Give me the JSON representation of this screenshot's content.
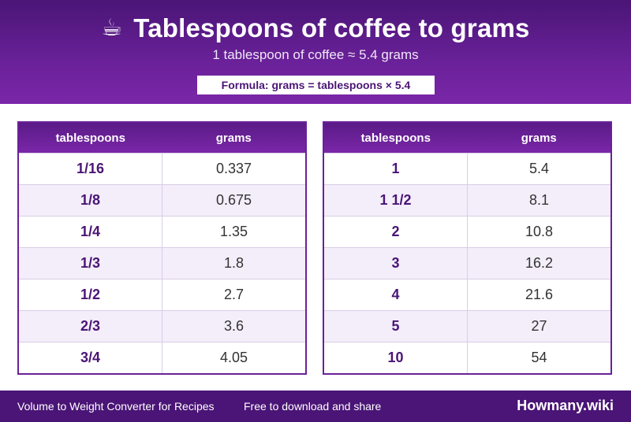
{
  "header": {
    "icon": "☕",
    "title": "Tablespoons of coffee to grams",
    "subtitle": "1 tablespoon of coffee ≈ 5.4 grams",
    "formula": "Formula: grams = tablespoons × 5.4"
  },
  "tables": [
    {
      "headers": [
        "tablespoons",
        "grams"
      ],
      "rows": [
        [
          "1/16",
          "0.337"
        ],
        [
          "1/8",
          "0.675"
        ],
        [
          "1/4",
          "1.35"
        ],
        [
          "1/3",
          "1.8"
        ],
        [
          "1/2",
          "2.7"
        ],
        [
          "2/3",
          "3.6"
        ],
        [
          "3/4",
          "4.05"
        ]
      ]
    },
    {
      "headers": [
        "tablespoons",
        "grams"
      ],
      "rows": [
        [
          "1",
          "5.4"
        ],
        [
          "1 1/2",
          "8.1"
        ],
        [
          "2",
          "10.8"
        ],
        [
          "3",
          "16.2"
        ],
        [
          "4",
          "21.6"
        ],
        [
          "5",
          "27"
        ],
        [
          "10",
          "54"
        ]
      ]
    }
  ],
  "footer": {
    "left": "Volume to Weight Converter for Recipes",
    "middle": "Free to download and share",
    "brand": "Howmany.wiki"
  },
  "colors": {
    "primary": "#6a2199",
    "dark": "#4a1576",
    "alt_row": "#f3eefa"
  }
}
